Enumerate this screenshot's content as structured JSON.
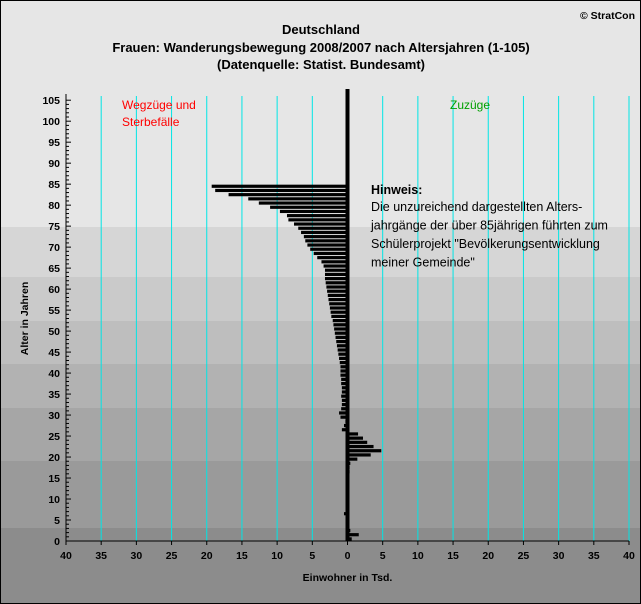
{
  "copyright": "© StratCon",
  "chart_data": {
    "type": "bar",
    "orientation": "horizontal",
    "title": "Deutschland",
    "subtitle": "Frauen: Wanderungsbewegung 2008/2007 nach Altersjahren (1-105)",
    "source": "(Datenquelle: Statist. Bundesamt)",
    "xlabel": "Einwohner in Tsd.",
    "ylabel": "Alter in Jahren",
    "xlim": [
      -40,
      40
    ],
    "ylim": [
      0,
      106
    ],
    "x_tick_values": [
      -40,
      -35,
      -30,
      -25,
      -20,
      -15,
      -10,
      -5,
      0,
      5,
      10,
      15,
      20,
      25,
      30,
      35,
      40
    ],
    "x_tick_labels": [
      "40",
      "35",
      "30",
      "25",
      "20",
      "15",
      "10",
      "5",
      "0",
      "5",
      "10",
      "15",
      "20",
      "25",
      "30",
      "35",
      "40"
    ],
    "y_ticks": [
      0,
      5,
      10,
      15,
      20,
      25,
      30,
      35,
      40,
      45,
      50,
      55,
      60,
      65,
      70,
      75,
      80,
      85,
      90,
      95,
      100,
      105
    ],
    "grid": "vertical",
    "left_label": "Wegzüge und Sterbefälle",
    "right_label": "Zuzüge",
    "left_label_color": "#ff0000",
    "right_label_color": "#00a000",
    "bar_color": "#000000",
    "gridline_color": "#00e5e5",
    "note_title": "Hinweis:",
    "note_lines": [
      "Die unzureichend dargestellten Alters-",
      "jahrgänge der über 85jährigen führten zum",
      "Schülerprojekt \"Bevölkerungsentwicklung",
      "meiner Gemeinde\""
    ],
    "series": [
      {
        "ages": [
          0,
          1,
          2,
          3,
          4,
          5,
          6,
          7,
          8,
          9,
          10,
          11,
          12,
          13,
          14,
          15,
          16,
          17,
          18,
          19,
          20,
          21,
          22,
          23,
          24,
          25,
          26,
          27,
          28,
          29,
          30,
          31,
          32,
          33,
          34,
          35,
          36,
          37,
          38,
          39,
          40,
          41,
          42,
          43,
          44,
          45,
          46,
          47,
          48,
          49,
          50,
          51,
          52,
          53,
          54,
          55,
          56,
          57,
          58,
          59,
          60,
          61,
          62,
          63,
          64,
          65,
          66,
          67,
          68,
          69,
          70,
          71,
          72,
          73,
          74,
          75,
          76,
          77,
          78,
          79,
          80,
          81,
          82,
          83,
          84
        ],
        "values": [
          0.6,
          1.6,
          0.4,
          0,
          0,
          0,
          -0.5,
          0,
          0,
          0,
          0,
          0,
          0,
          0,
          0,
          0.2,
          0.3,
          0.3,
          0.4,
          1.4,
          3.3,
          4.8,
          3.7,
          2.8,
          2.2,
          1.5,
          -0.8,
          -0.5,
          -0.3,
          -1,
          -1.2,
          -0.9,
          -0.8,
          -0.8,
          -0.9,
          -0.8,
          -0.8,
          -0.9,
          -0.9,
          -1,
          -1,
          -1,
          -1.1,
          -1.2,
          -1.3,
          -1.4,
          -1.5,
          -1.6,
          -1.7,
          -1.8,
          -1.9,
          -2,
          -2.1,
          -2.3,
          -2.4,
          -2.5,
          -2.6,
          -2.7,
          -2.8,
          -2.9,
          -3,
          -3.1,
          -3.2,
          -3.2,
          -3.2,
          -3.4,
          -3.7,
          -4.3,
          -4.8,
          -5.3,
          -5.7,
          -6,
          -6.2,
          -6.6,
          -7,
          -7.6,
          -8.4,
          -8.6,
          -9.6,
          -11,
          -12.6,
          -14.1,
          -16.9,
          -18.8,
          -19.3
        ]
      }
    ]
  }
}
